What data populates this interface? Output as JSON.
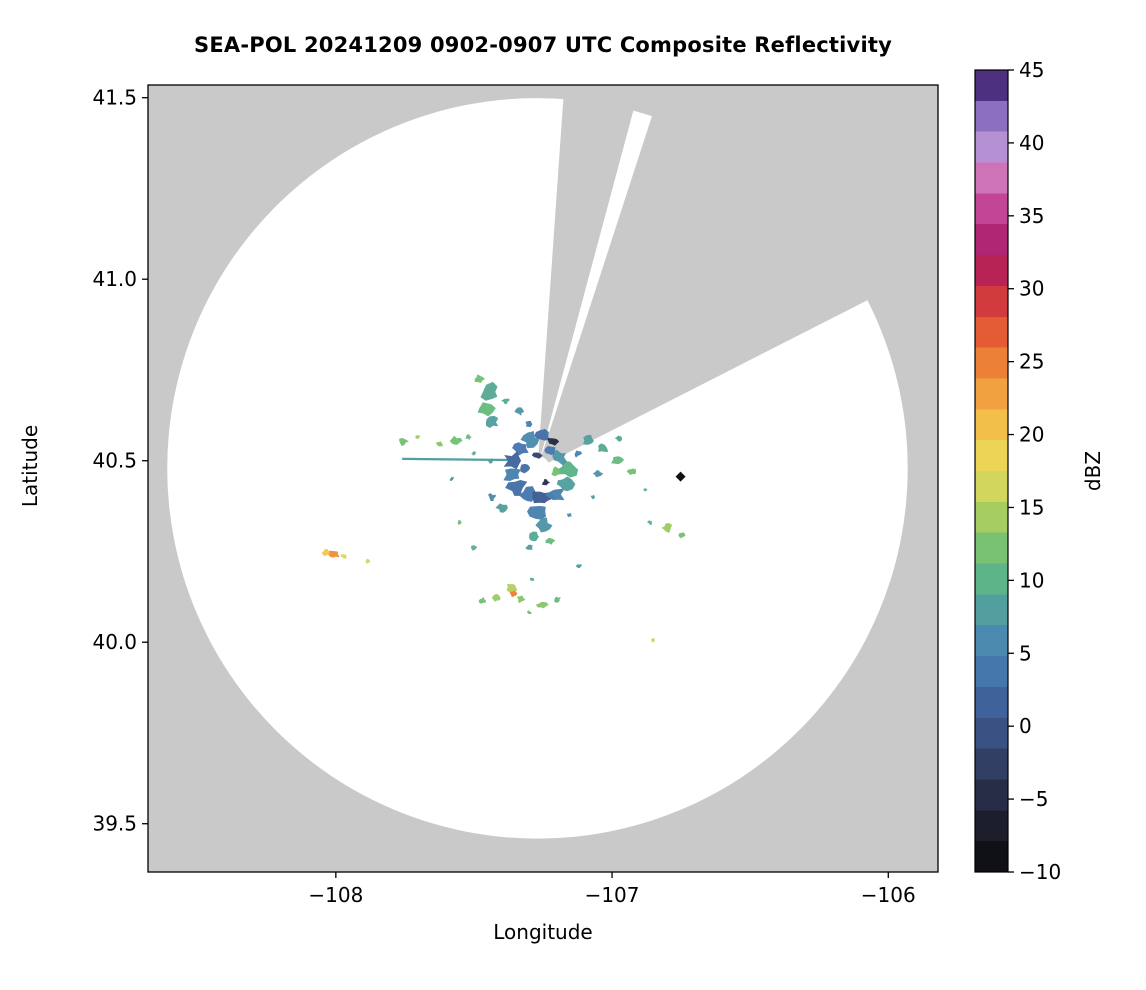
{
  "chart_data": {
    "type": "heatmap",
    "title": "SEA-POL 20241209 0902-0907 UTC Composite Reflectivity",
    "xlabel": "Longitude",
    "ylabel": "Latitude",
    "colorbar_label": "dBZ",
    "xlim": [
      -108.68,
      -105.82
    ],
    "ylim": [
      39.367,
      41.535
    ],
    "x_ticks": [
      -108,
      -107,
      -106
    ],
    "x_tick_labels": [
      "−108",
      "−107",
      "−106"
    ],
    "y_ticks": [
      39.5,
      40.0,
      40.5,
      41.0,
      41.5
    ],
    "y_tick_labels": [
      "39.5",
      "40.0",
      "40.5",
      "41.0",
      "41.5"
    ],
    "colorbar_range": [
      -10,
      45
    ],
    "colorbar_ticks": [
      -10,
      -5,
      0,
      5,
      10,
      15,
      20,
      25,
      30,
      35,
      40,
      45
    ],
    "colorbar_tick_labels": [
      "−10",
      "−5",
      "0",
      "5",
      "10",
      "15",
      "20",
      "25",
      "30",
      "35",
      "40",
      "45"
    ],
    "background_outside": "#c9c9c9",
    "coverage_color": "#ffffff",
    "radar": {
      "lon": -107.27,
      "lat": 40.479,
      "radius_deg": 1.02,
      "inner_hole_deg": 0.034
    },
    "blocked_sectors_deg": [
      [
        4,
        15
      ],
      [
        18,
        63
      ]
    ],
    "colormap_stops": [
      [
        -10,
        "#0a0a0e"
      ],
      [
        -8,
        "#16161f"
      ],
      [
        -6,
        "#222336"
      ],
      [
        -4,
        "#2c3350"
      ],
      [
        -2,
        "#35446e"
      ],
      [
        0,
        "#3c5589"
      ],
      [
        2,
        "#41659f"
      ],
      [
        4,
        "#4678ae"
      ],
      [
        6,
        "#4b8bae"
      ],
      [
        8,
        "#539f9f"
      ],
      [
        10,
        "#5cb389"
      ],
      [
        12,
        "#74c173"
      ],
      [
        14,
        "#9ecb63"
      ],
      [
        16,
        "#c9d65c"
      ],
      [
        18,
        "#ead95a"
      ],
      [
        20,
        "#f2c84f"
      ],
      [
        22,
        "#f3ad44"
      ],
      [
        24,
        "#ef8f39"
      ],
      [
        26,
        "#e96e34"
      ],
      [
        28,
        "#dd4a34"
      ],
      [
        30,
        "#c72f46"
      ],
      [
        32,
        "#ad1c5e"
      ],
      [
        34,
        "#b02b7e"
      ],
      [
        36,
        "#c94f9e"
      ],
      [
        38,
        "#d07cc0"
      ],
      [
        40,
        "#b193d6"
      ],
      [
        42,
        "#8a6cc0"
      ],
      [
        43.5,
        "#5d3d96"
      ],
      [
        44.5,
        "#3c2066"
      ],
      [
        45,
        "#241038"
      ]
    ],
    "echoes": [
      [
        -107.295,
        40.558,
        6,
        0.02
      ],
      [
        -107.252,
        40.568,
        3,
        0.016
      ],
      [
        -107.213,
        40.553,
        -5,
        0.012
      ],
      [
        -107.33,
        40.535,
        4,
        0.02
      ],
      [
        -107.357,
        40.5,
        2,
        0.022
      ],
      [
        -107.36,
        40.462,
        5,
        0.022
      ],
      [
        -107.343,
        40.425,
        3,
        0.022
      ],
      [
        -107.3,
        40.405,
        4,
        0.024
      ],
      [
        -107.252,
        40.398,
        1,
        0.022
      ],
      [
        -107.205,
        40.407,
        5,
        0.02
      ],
      [
        -107.172,
        40.435,
        8,
        0.02
      ],
      [
        -107.163,
        40.475,
        10,
        0.022
      ],
      [
        -107.19,
        40.51,
        7,
        0.018
      ],
      [
        -107.225,
        40.528,
        4,
        0.015
      ],
      [
        -107.27,
        40.515,
        -2,
        0.01
      ],
      [
        -107.31,
        40.48,
        3,
        0.014
      ],
      [
        -107.24,
        40.44,
        -4,
        0.009
      ],
      [
        -107.2,
        40.47,
        12,
        0.012
      ],
      [
        -107.268,
        40.36,
        5,
        0.02
      ],
      [
        -107.247,
        40.322,
        7,
        0.018
      ],
      [
        -107.28,
        40.29,
        9,
        0.013
      ],
      [
        -107.225,
        40.28,
        11,
        0.01
      ],
      [
        -107.3,
        40.26,
        8,
        0.008
      ],
      [
        -107.4,
        40.37,
        8,
        0.012
      ],
      [
        -107.435,
        40.4,
        6,
        0.009
      ],
      [
        -107.445,
        40.69,
        9,
        0.022
      ],
      [
        -107.46,
        40.645,
        11,
        0.02
      ],
      [
        -107.435,
        40.606,
        8,
        0.016
      ],
      [
        -107.48,
        40.725,
        12,
        0.011
      ],
      [
        -107.385,
        40.665,
        9,
        0.008
      ],
      [
        -107.335,
        40.635,
        7,
        0.01
      ],
      [
        -107.3,
        40.6,
        5,
        0.009
      ],
      [
        -107.565,
        40.555,
        12,
        0.012
      ],
      [
        -107.625,
        40.545,
        13,
        0.008
      ],
      [
        -107.755,
        40.553,
        12,
        0.01
      ],
      [
        -107.705,
        40.565,
        14,
        0.006
      ],
      [
        -107.085,
        40.555,
        8,
        0.014
      ],
      [
        -107.032,
        40.533,
        9,
        0.012
      ],
      [
        -106.982,
        40.503,
        11,
        0.014
      ],
      [
        -106.93,
        40.47,
        12,
        0.01
      ],
      [
        -107.052,
        40.465,
        7,
        0.01
      ],
      [
        -106.975,
        40.562,
        9,
        0.008
      ],
      [
        -107.125,
        40.52,
        5,
        0.01
      ],
      [
        -106.8,
        40.315,
        14,
        0.012
      ],
      [
        -106.745,
        40.295,
        12,
        0.008
      ],
      [
        -106.862,
        40.33,
        10,
        0.006
      ],
      [
        -108.005,
        40.243,
        24,
        0.013
      ],
      [
        -108.035,
        40.247,
        20,
        0.008
      ],
      [
        -107.972,
        40.237,
        17,
        0.007
      ],
      [
        -107.885,
        40.223,
        16,
        0.006
      ],
      [
        -107.5,
        40.262,
        10,
        0.008
      ],
      [
        -107.553,
        40.33,
        12,
        0.006
      ],
      [
        -107.12,
        40.21,
        8,
        0.006
      ],
      [
        -107.362,
        40.152,
        15,
        0.013
      ],
      [
        -107.358,
        40.133,
        25,
        0.008
      ],
      [
        -107.33,
        40.118,
        13,
        0.01
      ],
      [
        -107.42,
        40.122,
        14,
        0.01
      ],
      [
        -107.47,
        40.115,
        12,
        0.008
      ],
      [
        -107.253,
        40.103,
        13,
        0.012
      ],
      [
        -107.198,
        40.118,
        11,
        0.008
      ],
      [
        -107.3,
        40.082,
        12,
        0.006
      ],
      [
        -107.288,
        40.173,
        9,
        0.006
      ],
      [
        -106.852,
        40.005,
        16,
        0.006
      ],
      [
        -107.58,
        40.45,
        7,
        0.005
      ],
      [
        -107.5,
        40.52,
        9,
        0.005
      ],
      [
        -107.155,
        40.35,
        6,
        0.006
      ],
      [
        -107.07,
        40.4,
        8,
        0.005
      ],
      [
        -106.88,
        40.42,
        10,
        0.004
      ],
      [
        -107.44,
        40.5,
        8,
        0.006
      ],
      [
        -107.52,
        40.565,
        11,
        0.007
      ]
    ],
    "rays": [
      [
        -107.76,
        40.505,
        -107.37,
        40.502,
        8
      ]
    ],
    "markers": [
      {
        "lon": -106.752,
        "lat": 40.456,
        "shape": "diamond",
        "color": "#111111"
      }
    ]
  }
}
